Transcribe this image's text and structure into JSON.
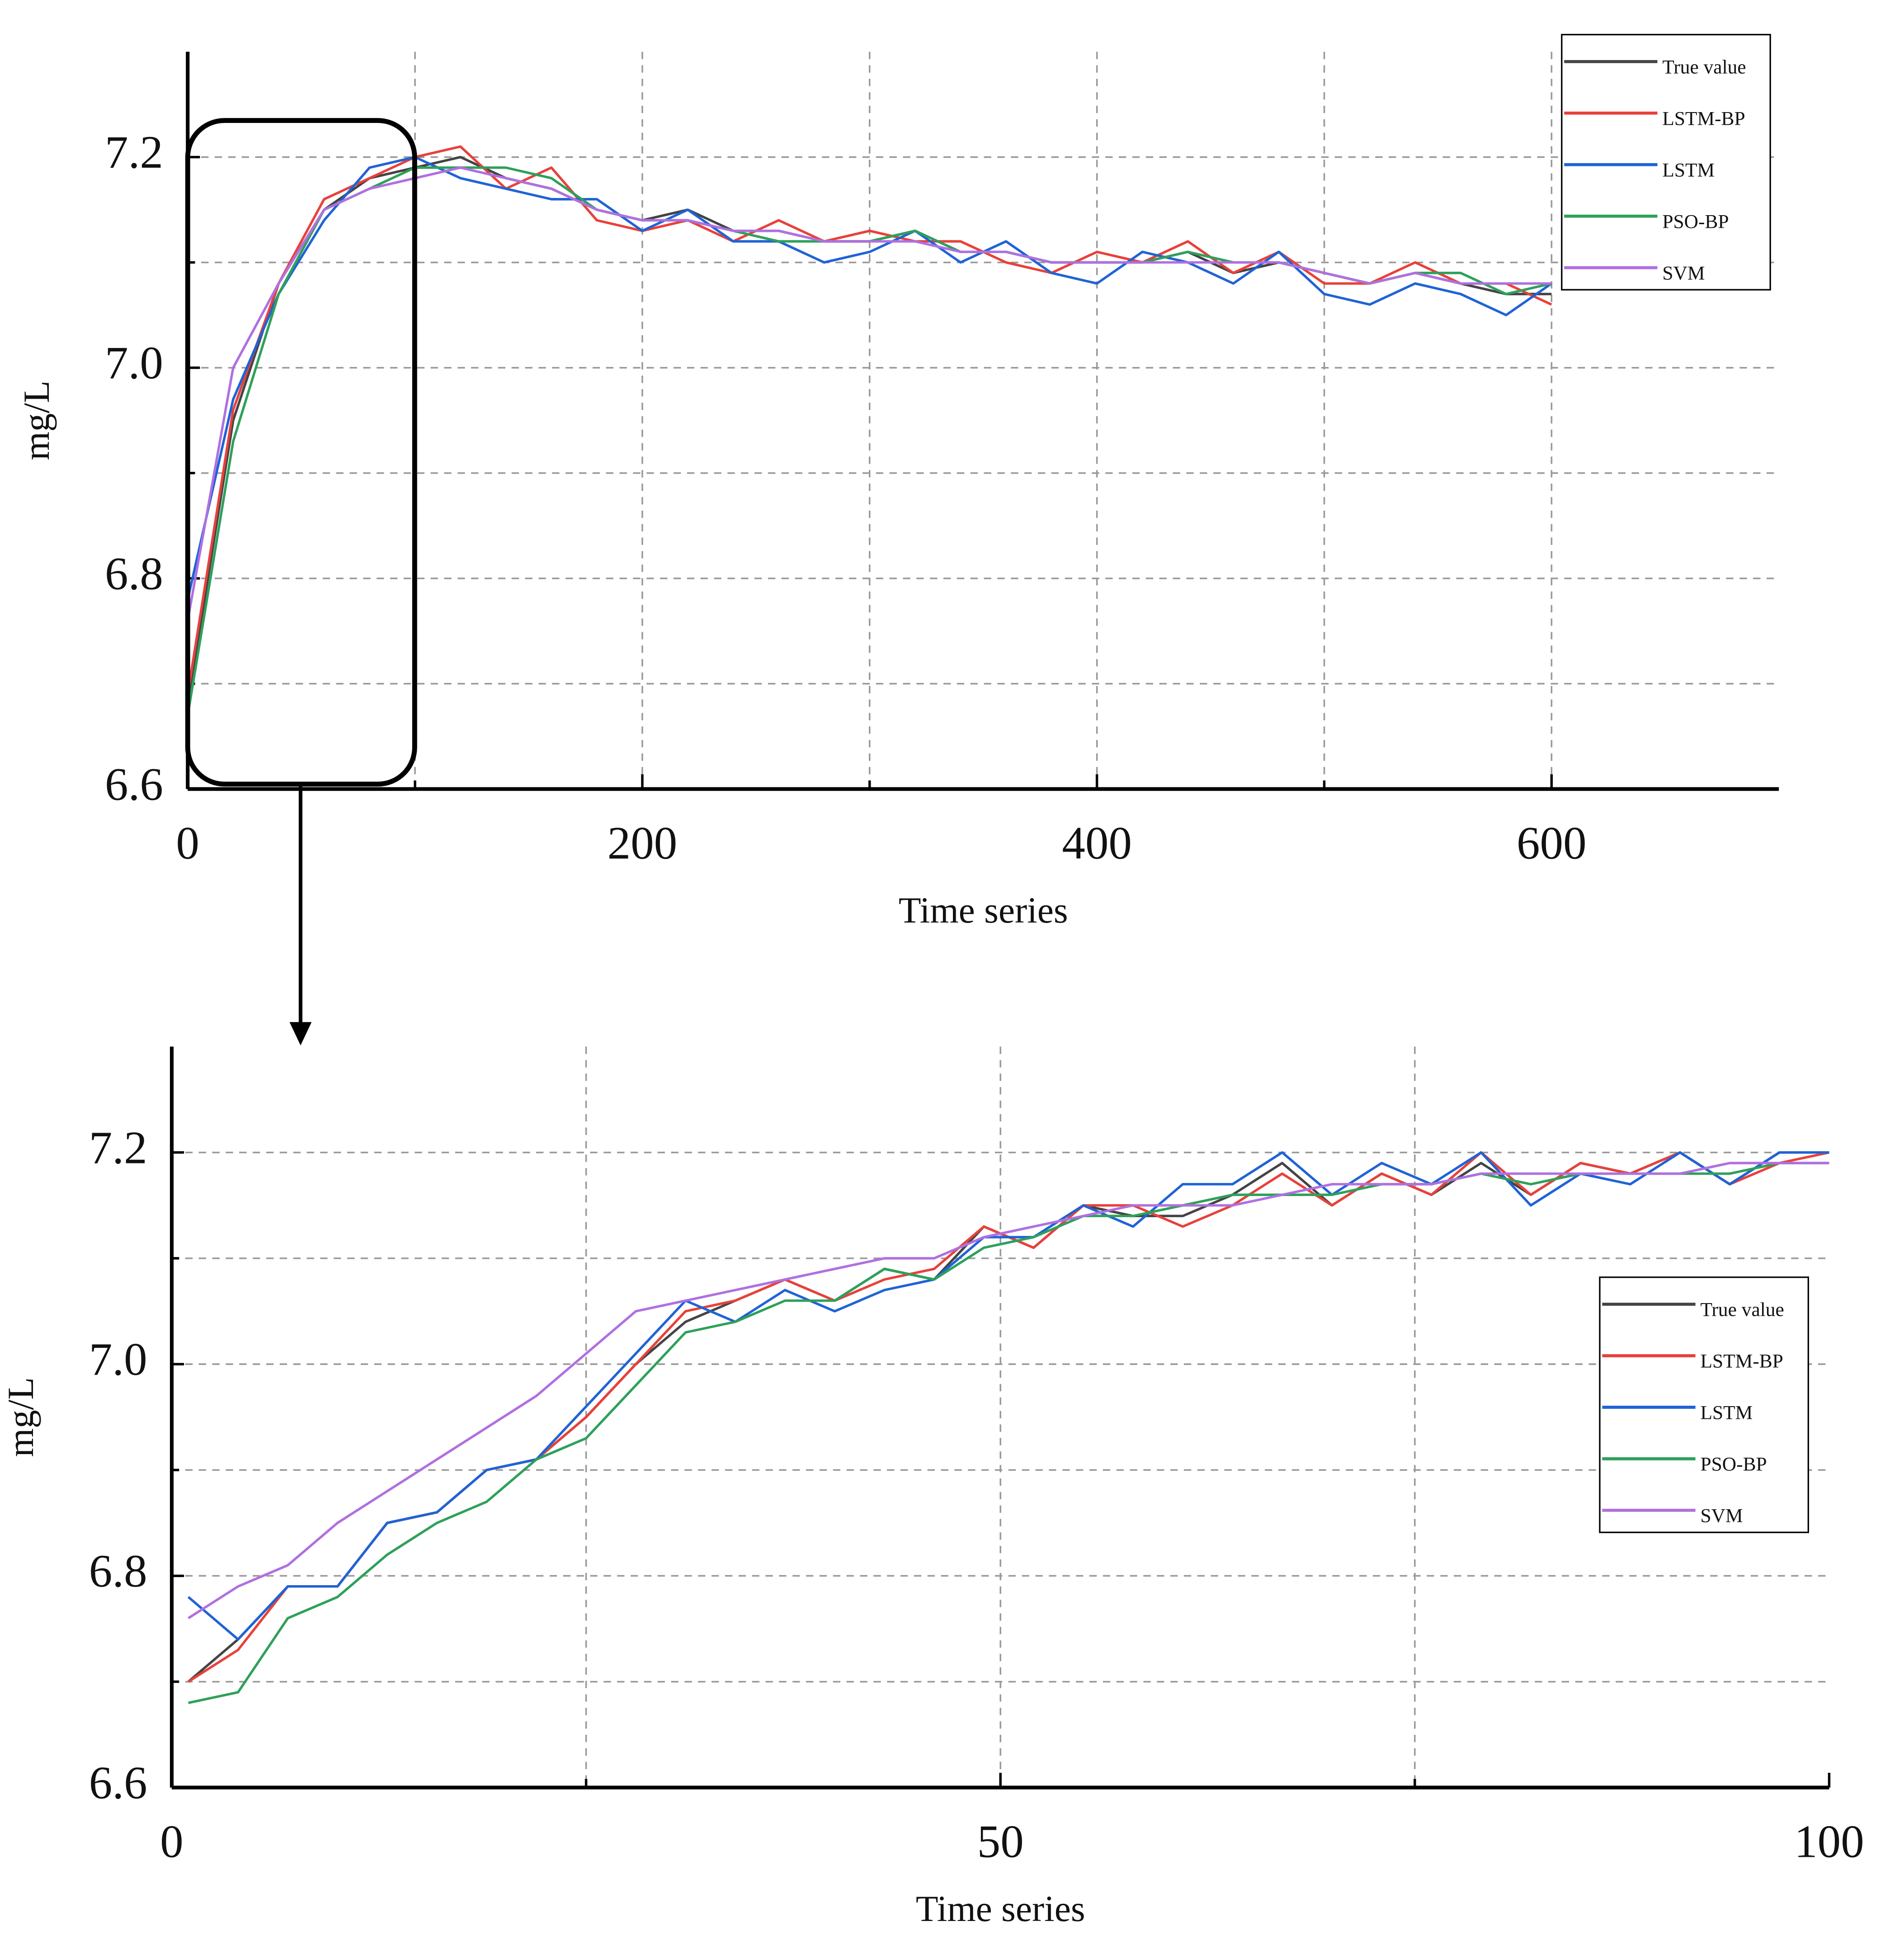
{
  "chart_data": [
    {
      "type": "line",
      "xlabel": "Time series",
      "ylabel": "mg/L",
      "x": [
        0,
        20,
        40,
        60,
        80,
        100,
        120,
        140,
        160,
        180,
        200,
        220,
        240,
        260,
        280,
        300,
        320,
        340,
        360,
        380,
        400,
        420,
        440,
        460,
        480,
        500,
        520,
        540,
        560,
        580,
        600
      ],
      "series": [
        {
          "name": "True value",
          "color": "#444444",
          "values": [
            6.68,
            6.95,
            7.08,
            7.15,
            7.18,
            7.19,
            7.2,
            7.18,
            7.17,
            7.15,
            7.14,
            7.15,
            7.13,
            7.13,
            7.12,
            7.12,
            7.13,
            7.11,
            7.11,
            7.1,
            7.1,
            7.1,
            7.11,
            7.09,
            7.1,
            7.09,
            7.08,
            7.09,
            7.08,
            7.07,
            7.07
          ]
        },
        {
          "name": "LSTM-BP",
          "color": "#e8413a",
          "values": [
            6.69,
            6.96,
            7.08,
            7.16,
            7.18,
            7.2,
            7.21,
            7.17,
            7.19,
            7.14,
            7.13,
            7.14,
            7.12,
            7.14,
            7.12,
            7.13,
            7.12,
            7.12,
            7.1,
            7.09,
            7.11,
            7.1,
            7.12,
            7.09,
            7.11,
            7.08,
            7.08,
            7.1,
            7.08,
            7.08,
            7.06
          ]
        },
        {
          "name": "LSTM",
          "color": "#1f63d6",
          "values": [
            6.78,
            6.97,
            7.07,
            7.14,
            7.19,
            7.2,
            7.18,
            7.17,
            7.16,
            7.16,
            7.13,
            7.15,
            7.12,
            7.12,
            7.1,
            7.11,
            7.13,
            7.1,
            7.12,
            7.09,
            7.08,
            7.11,
            7.1,
            7.08,
            7.11,
            7.07,
            7.06,
            7.08,
            7.07,
            7.05,
            7.08
          ]
        },
        {
          "name": "PSO-BP",
          "color": "#2ea05a",
          "values": [
            6.67,
            6.93,
            7.07,
            7.15,
            7.17,
            7.19,
            7.19,
            7.19,
            7.18,
            7.15,
            7.14,
            7.14,
            7.13,
            7.12,
            7.12,
            7.12,
            7.13,
            7.11,
            7.11,
            7.1,
            7.1,
            7.1,
            7.11,
            7.1,
            7.1,
            7.09,
            7.08,
            7.09,
            7.09,
            7.07,
            7.08
          ]
        },
        {
          "name": "SVM",
          "color": "#b070e0",
          "values": [
            6.76,
            7.0,
            7.08,
            7.15,
            7.17,
            7.18,
            7.19,
            7.18,
            7.17,
            7.15,
            7.14,
            7.14,
            7.13,
            7.13,
            7.12,
            7.12,
            7.12,
            7.11,
            7.11,
            7.1,
            7.1,
            7.1,
            7.1,
            7.1,
            7.1,
            7.09,
            7.08,
            7.09,
            7.08,
            7.08,
            7.08
          ]
        }
      ],
      "xlim": [
        0,
        700
      ],
      "xticks": [
        0,
        200,
        400,
        600
      ],
      "xminor": [
        100,
        300,
        500
      ],
      "ylim": [
        6.6,
        7.3
      ],
      "yticks": [
        {
          "value": 6.6,
          "label": "6.6"
        },
        {
          "value": 6.8,
          "label": "6.8"
        },
        {
          "value": 7.0,
          "label": "7.0"
        },
        {
          "value": 7.2,
          "label": "7.2"
        }
      ],
      "yminor": [
        6.7,
        6.9,
        7.1
      ],
      "grid": true,
      "legend": "upper right"
    },
    {
      "type": "line",
      "xlabel": "Time series",
      "ylabel": "mg/L",
      "x": [
        1,
        4,
        7,
        10,
        13,
        16,
        19,
        22,
        25,
        28,
        31,
        34,
        37,
        40,
        43,
        46,
        49,
        52,
        55,
        58,
        61,
        64,
        67,
        70,
        73,
        76,
        79,
        82,
        85,
        88,
        91,
        94,
        97,
        100
      ],
      "series": [
        {
          "name": "True value",
          "color": "#444444",
          "values": [
            6.7,
            6.74,
            6.79,
            6.79,
            6.85,
            6.86,
            6.9,
            6.91,
            6.95,
            7.0,
            7.04,
            7.06,
            7.08,
            7.06,
            7.09,
            7.08,
            7.13,
            7.11,
            7.15,
            7.14,
            7.14,
            7.16,
            7.19,
            7.15,
            7.18,
            7.16,
            7.19,
            7.16,
            7.19,
            7.18,
            7.2,
            7.17,
            7.2,
            7.2
          ]
        },
        {
          "name": "LSTM-BP",
          "color": "#e8413a",
          "values": [
            6.7,
            6.73,
            6.79,
            6.79,
            6.85,
            6.86,
            6.9,
            6.91,
            6.95,
            7.0,
            7.05,
            7.06,
            7.08,
            7.06,
            7.08,
            7.09,
            7.13,
            7.11,
            7.15,
            7.15,
            7.13,
            7.15,
            7.18,
            7.15,
            7.18,
            7.16,
            7.2,
            7.16,
            7.19,
            7.18,
            7.2,
            7.17,
            7.19,
            7.2
          ]
        },
        {
          "name": "LSTM",
          "color": "#1f63d6",
          "values": [
            6.78,
            6.74,
            6.79,
            6.79,
            6.85,
            6.86,
            6.9,
            6.91,
            6.96,
            7.01,
            7.06,
            7.04,
            7.07,
            7.05,
            7.07,
            7.08,
            7.12,
            7.12,
            7.15,
            7.13,
            7.17,
            7.17,
            7.2,
            7.16,
            7.19,
            7.17,
            7.2,
            7.15,
            7.18,
            7.17,
            7.2,
            7.17,
            7.2,
            7.2
          ]
        },
        {
          "name": "PSO-BP",
          "color": "#2ea05a",
          "values": [
            6.68,
            6.69,
            6.76,
            6.78,
            6.82,
            6.85,
            6.87,
            6.91,
            6.93,
            6.98,
            7.03,
            7.04,
            7.06,
            7.06,
            7.09,
            7.08,
            7.11,
            7.12,
            7.14,
            7.14,
            7.15,
            7.16,
            7.16,
            7.16,
            7.17,
            7.17,
            7.18,
            7.17,
            7.18,
            7.18,
            7.18,
            7.18,
            7.19,
            7.19
          ]
        },
        {
          "name": "SVM",
          "color": "#b070e0",
          "values": [
            6.76,
            6.79,
            6.81,
            6.85,
            6.88,
            6.91,
            6.94,
            6.97,
            7.01,
            7.05,
            7.06,
            7.07,
            7.08,
            7.09,
            7.1,
            7.1,
            7.12,
            7.13,
            7.14,
            7.15,
            7.15,
            7.15,
            7.16,
            7.17,
            7.17,
            7.17,
            7.18,
            7.18,
            7.18,
            7.18,
            7.18,
            7.19,
            7.19,
            7.19
          ]
        }
      ],
      "xlim": [
        0,
        100
      ],
      "xticks": [
        0,
        50,
        100
      ],
      "xminor": [
        25,
        75
      ],
      "ylim": [
        6.6,
        7.3
      ],
      "yticks": [
        {
          "value": 6.6,
          "label": "6.6"
        },
        {
          "value": 6.8,
          "label": "6.8"
        },
        {
          "value": 7.0,
          "label": "7.0"
        },
        {
          "value": 7.2,
          "label": "7.2"
        }
      ],
      "yminor": [
        6.7,
        6.9,
        7.1
      ],
      "grid": true,
      "legend": "center right"
    }
  ]
}
